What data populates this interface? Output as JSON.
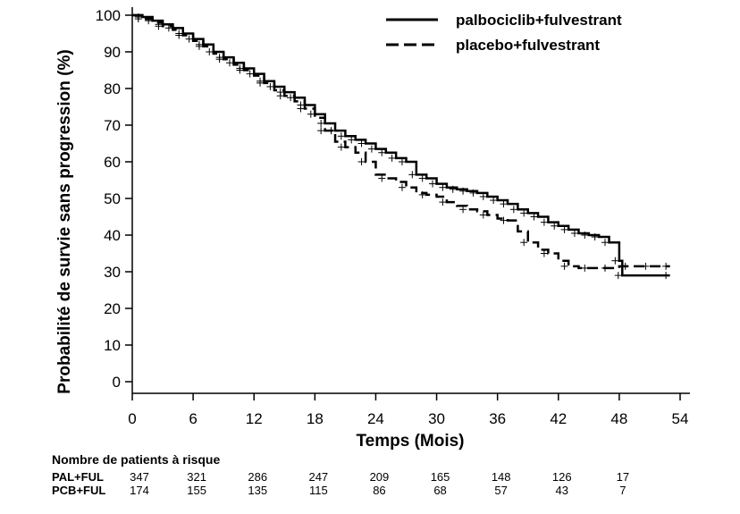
{
  "chart_data": {
    "type": "line",
    "title": "",
    "xlabel": "Temps (Mois)",
    "ylabel": "Probabilité de survie sans progression (%)",
    "xlim": [
      0,
      54
    ],
    "ylim": [
      0,
      100
    ],
    "xticks": [
      "0",
      "6",
      "12",
      "18",
      "24",
      "30",
      "36",
      "42",
      "48",
      "54"
    ],
    "yticks": [
      "0",
      "10",
      "20",
      "30",
      "40",
      "50",
      "60",
      "70",
      "80",
      "90",
      "100"
    ],
    "legend": "top-right",
    "series": [
      {
        "name": "palbociclib+fulvestrant",
        "style": "solid",
        "color": "#000000",
        "x": [
          0,
          1,
          2,
          3,
          4,
          5,
          6,
          7,
          8,
          9,
          10,
          11,
          12,
          13,
          14,
          15,
          16,
          17,
          18,
          19,
          20,
          21,
          22,
          23,
          24,
          25,
          26,
          27,
          28,
          29,
          30,
          31,
          32,
          33,
          34,
          35,
          36,
          37,
          38,
          39,
          40,
          41,
          42,
          43,
          44,
          45,
          46,
          47,
          48,
          48.3,
          53
        ],
        "y": [
          100,
          99.5,
          98.5,
          97.5,
          96.5,
          95,
          93.5,
          92,
          90,
          88.5,
          87,
          85.5,
          84,
          82,
          80.5,
          79,
          77.5,
          75.5,
          73,
          70.5,
          68.5,
          67,
          66,
          65,
          63.5,
          62.5,
          61,
          60,
          56.5,
          55.5,
          54,
          53,
          52.5,
          52,
          51.5,
          50.5,
          49.5,
          48.5,
          47,
          46,
          45,
          43.5,
          42.5,
          41.5,
          40.5,
          40,
          39.5,
          38,
          33,
          29,
          29
        ]
      },
      {
        "name": "placebo+fulvestrant",
        "style": "dashed",
        "color": "#000000",
        "x": [
          0,
          1,
          2,
          3,
          4,
          5,
          6,
          7,
          8,
          9,
          10,
          11,
          12,
          13,
          14,
          15,
          16,
          17,
          18,
          19,
          20,
          21,
          22,
          23,
          24,
          25,
          26,
          27,
          28,
          29,
          30,
          31,
          32,
          33,
          34,
          35,
          36,
          37,
          38,
          39,
          40,
          41,
          42,
          43,
          44,
          45,
          46,
          47,
          48,
          49,
          50,
          51,
          52,
          53
        ],
        "y": [
          100,
          99,
          98,
          97,
          96,
          94.5,
          93,
          91.5,
          89.5,
          88,
          86.5,
          85,
          83.5,
          81.5,
          79.5,
          78,
          76.5,
          74.5,
          72,
          68.5,
          65.5,
          64,
          62.5,
          60,
          56.5,
          55.5,
          54.5,
          53,
          51.5,
          51,
          50.5,
          49,
          48,
          47,
          46.5,
          45.5,
          44.5,
          44,
          41,
          38,
          36,
          35,
          33,
          31.5,
          31,
          31,
          31,
          31,
          31.5,
          31.5,
          31.5,
          31.5,
          31.5,
          31.5
        ]
      }
    ],
    "risk_table": {
      "title": "Nombre de patients à risque",
      "times": [
        0,
        6,
        12,
        18,
        24,
        30,
        36,
        42,
        48
      ],
      "rows": [
        {
          "label": "PAL+FUL",
          "values": [
            "347",
            "321",
            "286",
            "247",
            "209",
            "165",
            "148",
            "126",
            "17"
          ]
        },
        {
          "label": "PCB+FUL",
          "values": [
            "174",
            "155",
            "135",
            "115",
            "86",
            "68",
            "57",
            "43",
            "7"
          ]
        }
      ]
    }
  }
}
